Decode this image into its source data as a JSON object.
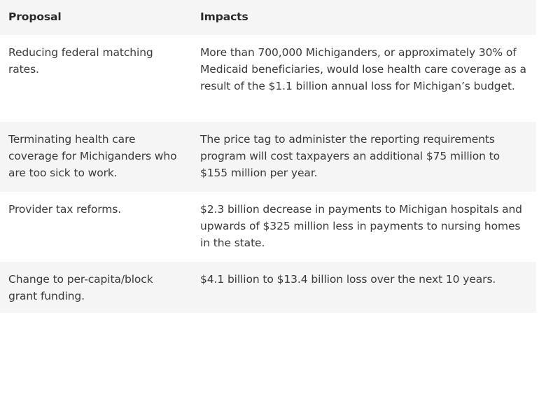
{
  "table": {
    "headers": {
      "proposal": "Proposal",
      "impacts": "Impacts"
    },
    "rows": [
      {
        "proposal": "Reducing federal matching rates.",
        "impacts": "More than 700,000 Michiganders, or approximately 30% of Medicaid beneficiaries, would lose health care coverage as a result of the $1.1 billion annual loss for Michigan’s budget."
      },
      {
        "proposal": "Terminating health care coverage for Michiganders who are too sick to work.",
        "impacts": "The price tag to administer the reporting requirements program will cost taxpayers an additional $75 million to $155 million per year."
      },
      {
        "proposal": "Provider tax reforms.",
        "impacts": "$2.3 billion decrease in payments to Michigan hospitals and upwards of $325 million less in payments to nursing homes in the state."
      },
      {
        "proposal": "Change to per-capita/block grant funding.",
        "impacts": "$4.1 billion to $13.4 billion loss over the next 10 years."
      }
    ]
  }
}
